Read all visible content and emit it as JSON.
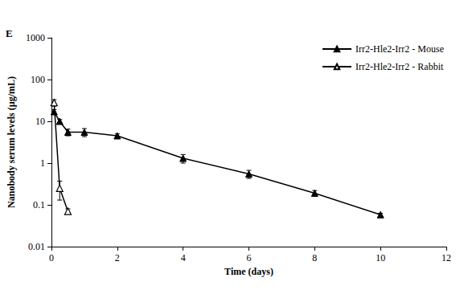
{
  "chart_data": {
    "type": "line",
    "title": "E",
    "x_label": "Time (days)",
    "y_label": "Nanobody serum levels (µg/mL)",
    "log": "y",
    "grid": false,
    "legend": "top-right",
    "xlim": [
      0,
      12
    ],
    "xticks": [
      0,
      2,
      4,
      6,
      8,
      10,
      12
    ],
    "ylim": [
      0.01,
      1000
    ],
    "yticks": [
      0.01,
      0.1,
      1,
      10,
      100,
      1000
    ],
    "series": [
      {
        "name": "Irr2-Hle2-Irr2 - Mouse",
        "color": "#000000",
        "marker": "triangle",
        "line_style": "solid",
        "x": [
          0.08,
          0.25,
          0.5,
          1,
          2,
          4,
          6,
          8,
          10
        ],
        "values": [
          17,
          10,
          5.5,
          5.5,
          4.5,
          1.3,
          0.55,
          0.19,
          0.058
        ],
        "errors": [
          2,
          1,
          1,
          1.2,
          0.5,
          0.3,
          0.12,
          0.03,
          0.005
        ]
      },
      {
        "name": "Irr2-Hle2-Irr2 - Rabbit",
        "color": "#000000",
        "marker": "triangle-open",
        "line_style": "solid",
        "x": [
          0.08,
          0.25,
          0.5
        ],
        "values": [
          28,
          0.25,
          0.07
        ],
        "errors": [
          5,
          0.12,
          0.01
        ]
      }
    ]
  }
}
